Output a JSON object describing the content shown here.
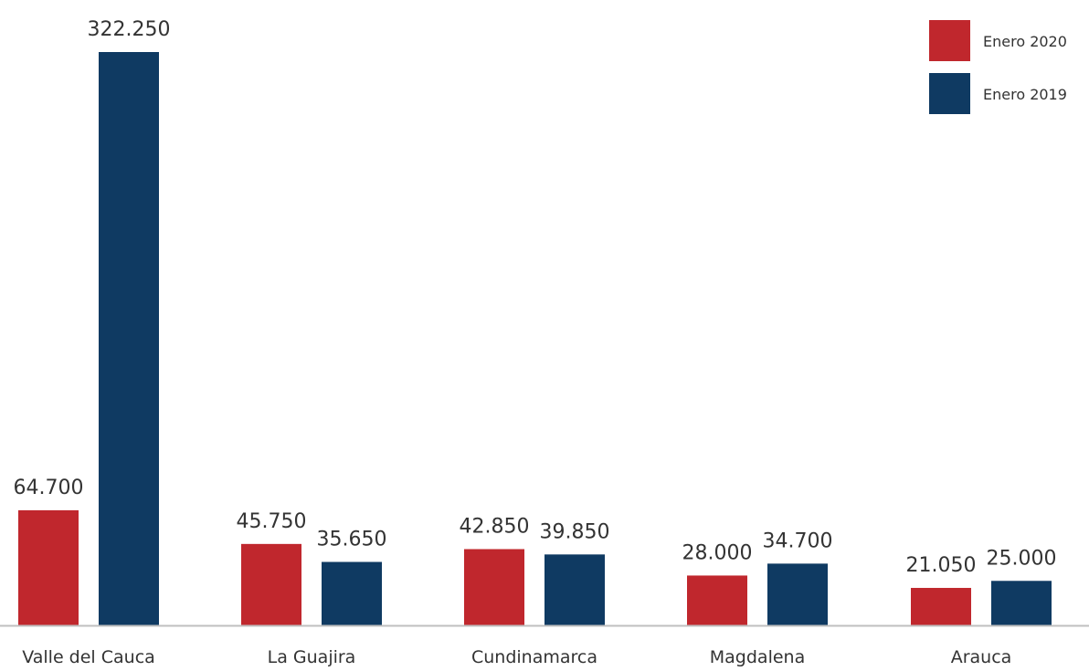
{
  "chart_data": {
    "type": "bar",
    "categories": [
      "Valle del Cauca",
      "La Guajira",
      "Cundinamarca",
      "Magdalena",
      "Arauca"
    ],
    "series": [
      {
        "name": "Enero 2020",
        "color": "#C0272D",
        "values": [
          64700,
          45750,
          42850,
          28000,
          21050
        ],
        "labels": [
          "64.700",
          "45.750",
          "42.850",
          "28.000",
          "21.050"
        ]
      },
      {
        "name": "Enero 2019",
        "color": "#0F3A62",
        "values": [
          322250,
          35650,
          39850,
          34700,
          25000
        ],
        "labels": [
          "322.250",
          "35.650",
          "39.850",
          "34.700",
          "25.000"
        ]
      }
    ],
    "ylim": [
      0,
      322250
    ],
    "legend_position": "top-right",
    "grid": false
  }
}
